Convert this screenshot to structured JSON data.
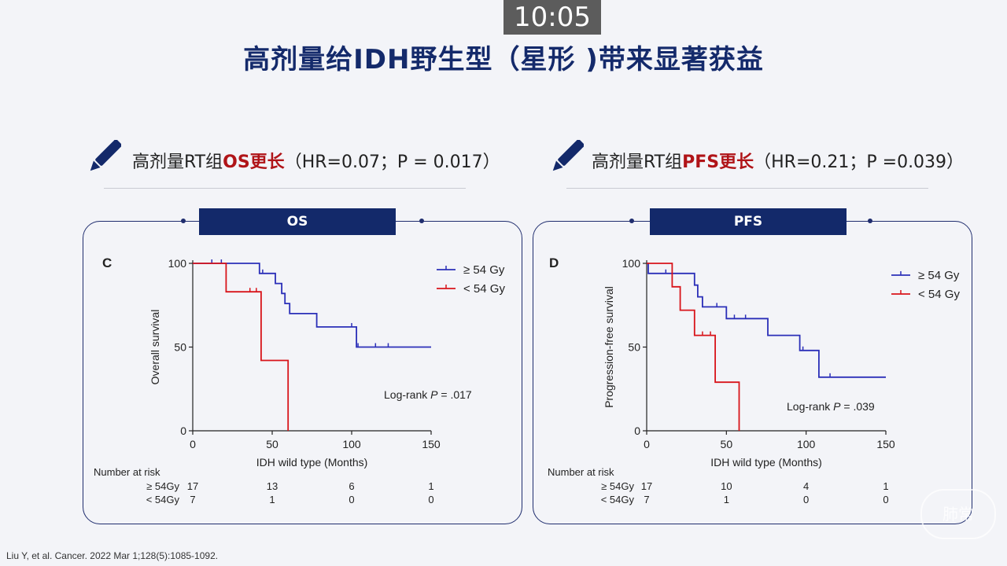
{
  "header": {
    "timer": "10:05",
    "title": "高剂量给IDH野生型（星形 )带来显著获益"
  },
  "claims": [
    {
      "prefix": "高剂量RT组",
      "highlight": "OS更长",
      "stats": "（HR=0.07；P = 0.017）"
    },
    {
      "prefix": "高剂量RT组",
      "highlight": "PFS更长",
      "stats": "（HR=0.21；P =0.039）"
    }
  ],
  "colors": {
    "high_dose": "#2b2fb8",
    "low_dose": "#d8141a",
    "navy": "#13296a",
    "highlight": "#b01418"
  },
  "icons": {
    "claim_marker": "pencil-icon"
  },
  "citation": "Liu Y, et al. Cancer. 2022 Mar 1;128(5):1085-1092.",
  "watermark": "肺常",
  "chart_data": [
    {
      "type": "line",
      "tab": "OS",
      "panel_letter": "C",
      "xlabel": "IDH wild type (Months)",
      "ylabel": "Overall survival",
      "xlim": [
        0,
        150
      ],
      "ylim": [
        0,
        100
      ],
      "xticks": [
        "0",
        "50",
        "100",
        "150"
      ],
      "yticks": [
        "0",
        "50",
        "100"
      ],
      "legend_position": "top-right",
      "series": [
        {
          "name": "≥  54  Gy",
          "color": "#2b2fb8",
          "steps": [
            [
              0,
              100
            ],
            [
              42,
              100
            ],
            [
              42,
              94
            ],
            [
              52,
              94
            ],
            [
              52,
              88
            ],
            [
              56,
              88
            ],
            [
              56,
              82
            ],
            [
              58,
              82
            ],
            [
              58,
              76
            ],
            [
              61,
              76
            ],
            [
              61,
              70
            ],
            [
              78,
              70
            ],
            [
              78,
              62
            ],
            [
              103,
              62
            ],
            [
              103,
              50
            ],
            [
              150,
              50
            ]
          ],
          "censors": [
            [
              12,
              100
            ],
            [
              18,
              100
            ],
            [
              44,
              94
            ],
            [
              100,
              62
            ],
            [
              104,
              50
            ],
            [
              115,
              50
            ],
            [
              123,
              50
            ]
          ]
        },
        {
          "name": "< 54  Gy",
          "color": "#d8141a",
          "steps": [
            [
              0,
              100
            ],
            [
              21,
              100
            ],
            [
              21,
              83
            ],
            [
              43,
              83
            ],
            [
              43,
              42
            ],
            [
              60,
              42
            ],
            [
              60,
              0
            ]
          ],
          "censors": [
            [
              36,
              83
            ],
            [
              40,
              83
            ]
          ]
        }
      ],
      "annotation": {
        "prefix": "Log-rank ",
        "italic": "P",
        "suffix": " = .017"
      },
      "risk_table": {
        "title": "Number at risk",
        "rows": [
          {
            "label": "≥ 54Gy",
            "values": [
              "17",
              "13",
              "6",
              "1"
            ]
          },
          {
            "label": "< 54Gy",
            "values": [
              "7",
              "1",
              "0",
              "0"
            ]
          }
        ]
      }
    },
    {
      "type": "line",
      "tab": "PFS",
      "panel_letter": "D",
      "xlabel": "IDH wild type (Months)",
      "ylabel": "Progression-free survival",
      "xlim": [
        0,
        150
      ],
      "ylim": [
        0,
        100
      ],
      "xticks": [
        "0",
        "50",
        "100",
        "150"
      ],
      "yticks": [
        "0",
        "50",
        "100"
      ],
      "legend_position": "top-right",
      "series": [
        {
          "name": "≥  54 Gy",
          "color": "#2b2fb8",
          "steps": [
            [
              0,
              100
            ],
            [
              1,
              100
            ],
            [
              1,
              94
            ],
            [
              30,
              94
            ],
            [
              30,
              87
            ],
            [
              32,
              87
            ],
            [
              32,
              80
            ],
            [
              35,
              80
            ],
            [
              35,
              74
            ],
            [
              50,
              74
            ],
            [
              50,
              67
            ],
            [
              76,
              67
            ],
            [
              76,
              57
            ],
            [
              96,
              57
            ],
            [
              96,
              48
            ],
            [
              108,
              48
            ],
            [
              108,
              32
            ],
            [
              150,
              32
            ]
          ],
          "censors": [
            [
              12,
              94
            ],
            [
              44,
              74
            ],
            [
              55,
              67
            ],
            [
              62,
              67
            ],
            [
              98,
              48
            ],
            [
              115,
              32
            ]
          ]
        },
        {
          "name": "< 54 Gy",
          "color": "#d8141a",
          "steps": [
            [
              0,
              100
            ],
            [
              16,
              100
            ],
            [
              16,
              86
            ],
            [
              21,
              86
            ],
            [
              21,
              72
            ],
            [
              30,
              72
            ],
            [
              30,
              57
            ],
            [
              43,
              57
            ],
            [
              43,
              29
            ],
            [
              58,
              29
            ],
            [
              58,
              0
            ]
          ],
          "censors": [
            [
              35,
              57
            ],
            [
              40,
              57
            ]
          ]
        }
      ],
      "annotation": {
        "prefix": "Log-rank ",
        "italic": "P",
        "suffix": " = .039"
      },
      "risk_table": {
        "title": "Number at risk",
        "rows": [
          {
            "label": "≥ 54Gy",
            "values": [
              "17",
              "10",
              "4",
              "1"
            ]
          },
          {
            "label": "< 54Gy",
            "values": [
              "7",
              "1",
              "0",
              "0"
            ]
          }
        ]
      }
    }
  ]
}
